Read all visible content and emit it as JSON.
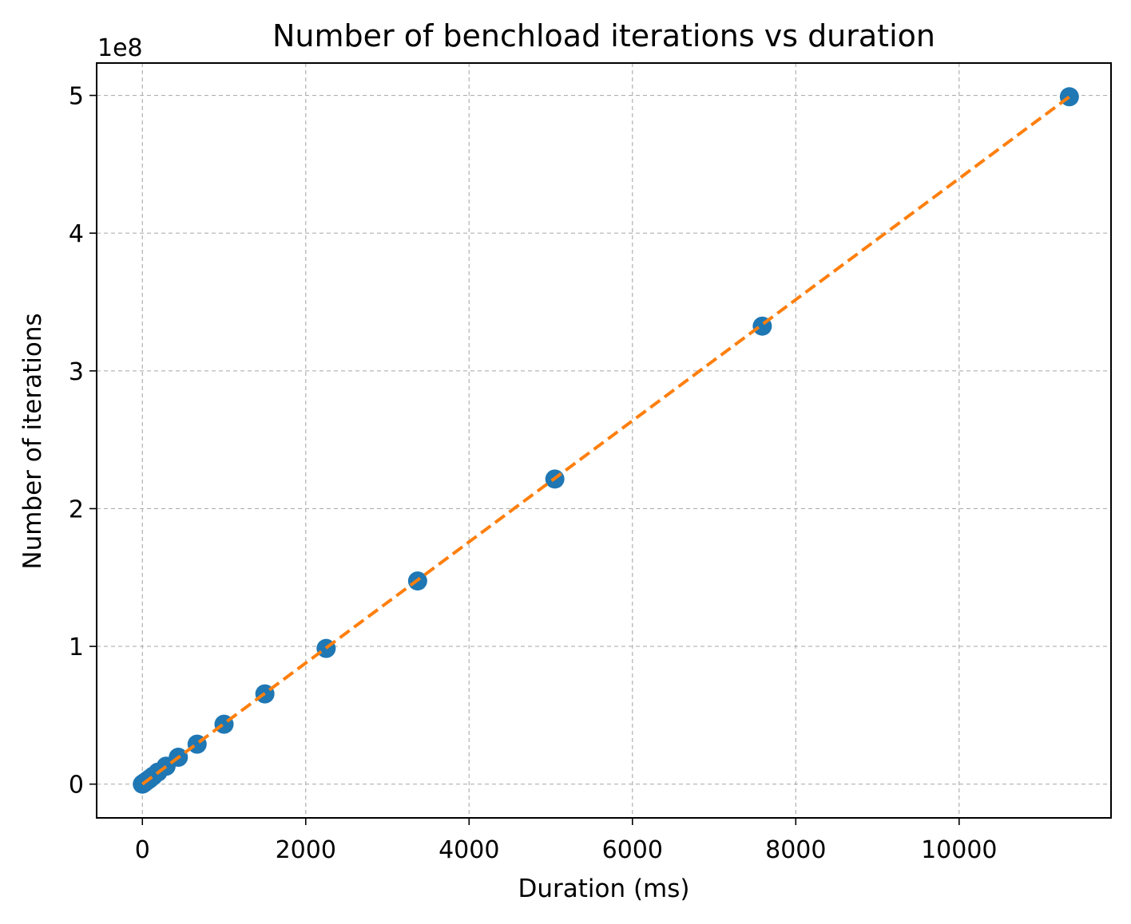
{
  "chart_data": {
    "type": "scatter",
    "title": "Number of benchload iterations vs duration",
    "xlabel": "Duration (ms)",
    "ylabel": "Number of iterations",
    "y_offset_label": "1e8",
    "y_scale": 100000000,
    "xlim": [
      -560,
      11860
    ],
    "ylim": [
      -0.245,
      5.235
    ],
    "x_ticks": [
      0,
      2000,
      4000,
      6000,
      8000,
      10000
    ],
    "x_tick_labels": [
      "0",
      "2000",
      "4000",
      "6000",
      "8000",
      "10000"
    ],
    "y_ticks": [
      0,
      1,
      2,
      3,
      4,
      5
    ],
    "y_tick_labels": [
      "0",
      "1",
      "2",
      "3",
      "4",
      "5"
    ],
    "grid": true,
    "series": [
      {
        "kind": "scatter",
        "color": "#1f77b4",
        "x": [
          0,
          13,
          30,
          60,
          90,
          130,
          190,
          290,
          440,
          670,
          1000,
          1500,
          2250,
          3370,
          5050,
          7590,
          11350
        ],
        "y": [
          0.0,
          0.006,
          0.013,
          0.026,
          0.039,
          0.058,
          0.087,
          0.13,
          0.195,
          0.29,
          0.435,
          0.655,
          0.985,
          1.475,
          2.215,
          3.325,
          4.99
        ]
      },
      {
        "kind": "line",
        "style": "dashed",
        "color": "#ff7f0e",
        "x": [
          0,
          11350
        ],
        "y": [
          0.0,
          4.99
        ]
      }
    ]
  }
}
